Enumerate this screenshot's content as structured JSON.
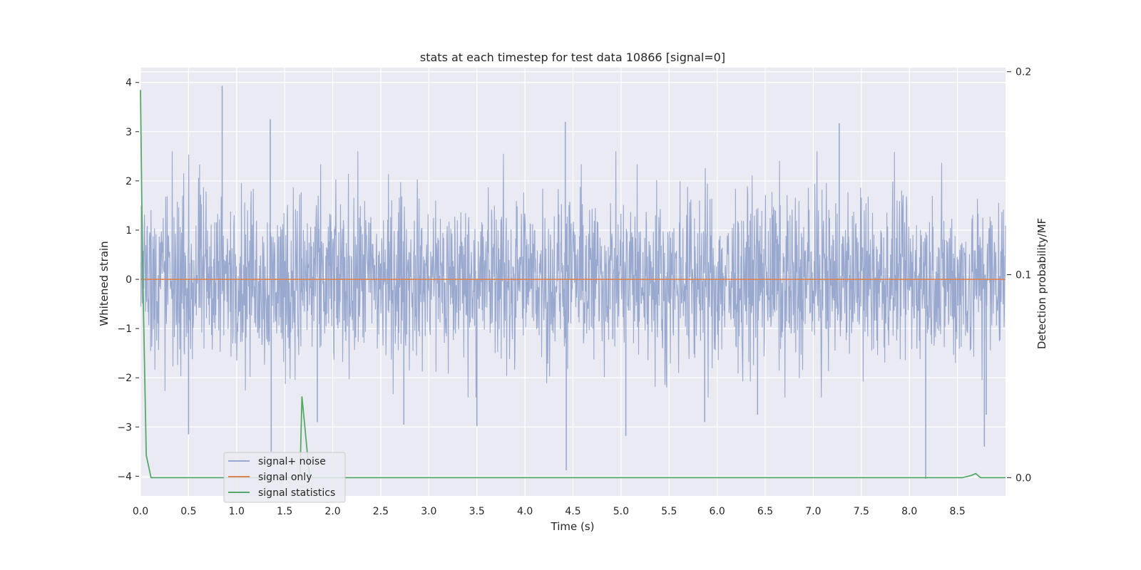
{
  "chart_data": {
    "type": "line",
    "title": "stats at each timestep for test data 10866 [signal=0]",
    "xlabel": "Time (s)",
    "ylabel": "Whitened strain",
    "y2label": "Detection probability/MF",
    "xlim": [
      0.0,
      9.0
    ],
    "ylim": [
      -4.4,
      4.3
    ],
    "y2lim": [
      -0.009,
      0.202
    ],
    "xticks": [
      "0.0",
      "0.5",
      "1.0",
      "1.5",
      "2.0",
      "2.5",
      "3.0",
      "3.5",
      "4.0",
      "4.5",
      "5.0",
      "5.5",
      "6.0",
      "6.5",
      "7.0",
      "7.5",
      "8.0",
      "8.5"
    ],
    "yticks": [
      "−4",
      "−3",
      "−2",
      "−1",
      "0",
      "1",
      "2",
      "3",
      "4"
    ],
    "y2ticks": [
      "0.0",
      "0.1",
      "0.2"
    ],
    "grid": true,
    "legend_position": "lower-left",
    "background": "#eaeaf2",
    "series": [
      {
        "name": "signal+ noise",
        "color": "#98a8ce",
        "axis": "left",
        "description_level": "noise band, typical amplitude about ±1.8, peaks up to 3.9",
        "noise_envelope": 1.8,
        "spikes": [
          {
            "x": 0.85,
            "y": 3.93
          },
          {
            "x": 1.35,
            "y": 3.25
          },
          {
            "x": 1.36,
            "y": -3.5
          },
          {
            "x": 0.5,
            "y": -3.15
          },
          {
            "x": 1.84,
            "y": -2.9
          },
          {
            "x": 2.74,
            "y": -2.95
          },
          {
            "x": 3.5,
            "y": -2.98
          },
          {
            "x": 4.42,
            "y": 3.2
          },
          {
            "x": 4.43,
            "y": -3.88
          },
          {
            "x": 5.05,
            "y": -3.18
          },
          {
            "x": 5.87,
            "y": -2.9
          },
          {
            "x": 6.42,
            "y": -2.75
          },
          {
            "x": 7.27,
            "y": 3.17
          },
          {
            "x": 8.17,
            "y": -4.05
          },
          {
            "x": 8.78,
            "y": -3.4
          },
          {
            "x": 8.8,
            "y": -2.75
          }
        ]
      },
      {
        "name": "signal only",
        "color": "#dd8452",
        "axis": "left",
        "x": [
          0.0,
          9.0
        ],
        "y": [
          0.0,
          0.0
        ]
      },
      {
        "name": "signal statistics",
        "color": "#55a868",
        "axis": "right",
        "x": [
          0.0,
          0.02,
          0.06,
          0.11,
          1.6,
          1.66,
          1.68,
          1.71,
          1.76,
          8.55,
          8.64,
          8.69,
          8.74,
          9.0
        ],
        "y": [
          0.191,
          0.11,
          0.011,
          0.0,
          0.0,
          0.001,
          0.04,
          0.025,
          0.0,
          0.0,
          0.001,
          0.002,
          0.0,
          0.0
        ]
      }
    ]
  }
}
